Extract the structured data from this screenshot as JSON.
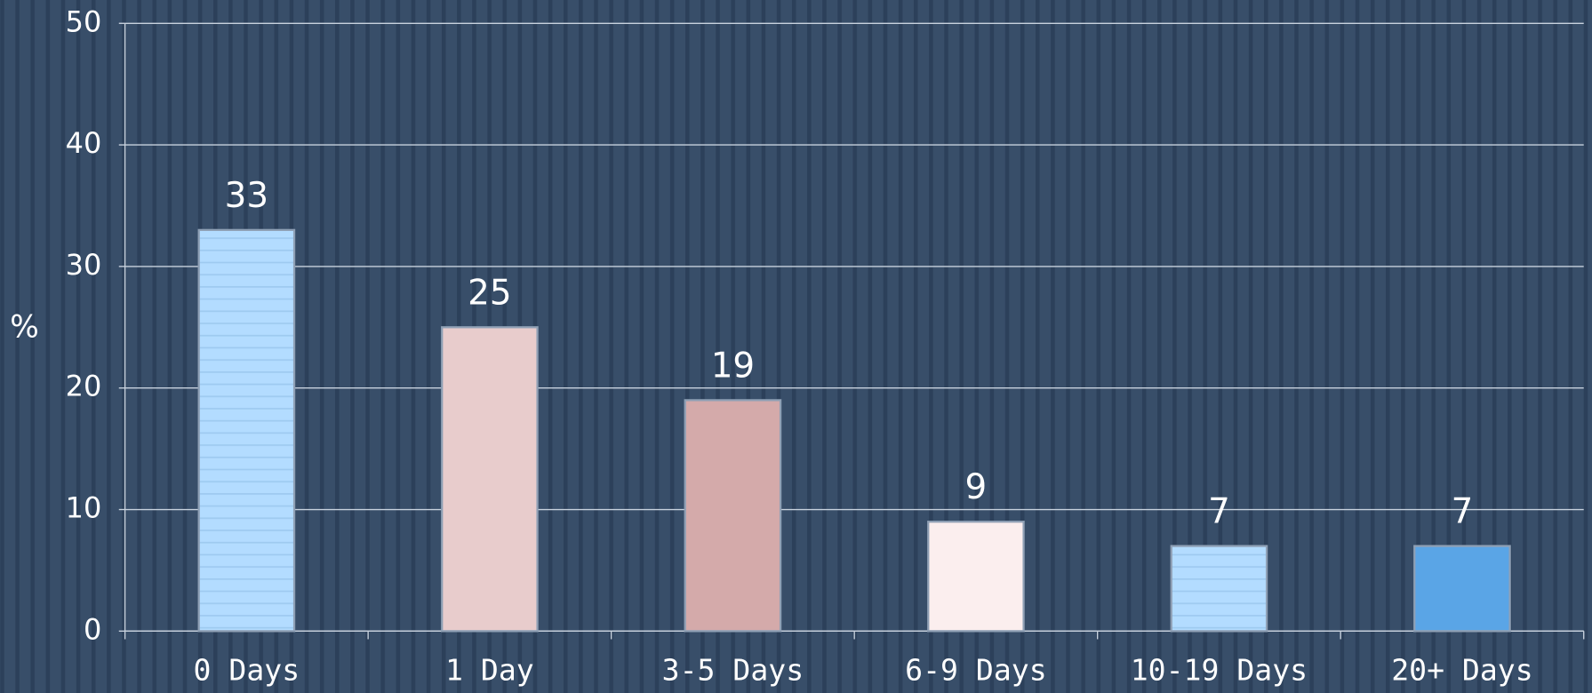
{
  "chart_data": {
    "type": "bar",
    "y_label": "%",
    "categories": [
      "0 Days",
      "1 Day",
      "3-5 Days",
      "6-9 Days",
      "10-19 Days",
      "20+ Days"
    ],
    "values": [
      33,
      25,
      19,
      9,
      7,
      7
    ],
    "colors": [
      "#b3dcff",
      "#e8cccc",
      "#d4aaaa",
      "#fbeeee",
      "#b3dcff",
      "#5aa5e6"
    ],
    "ylim": [
      0,
      50
    ],
    "yticks": [
      0,
      10,
      20,
      30,
      40,
      50
    ],
    "grid": true
  }
}
